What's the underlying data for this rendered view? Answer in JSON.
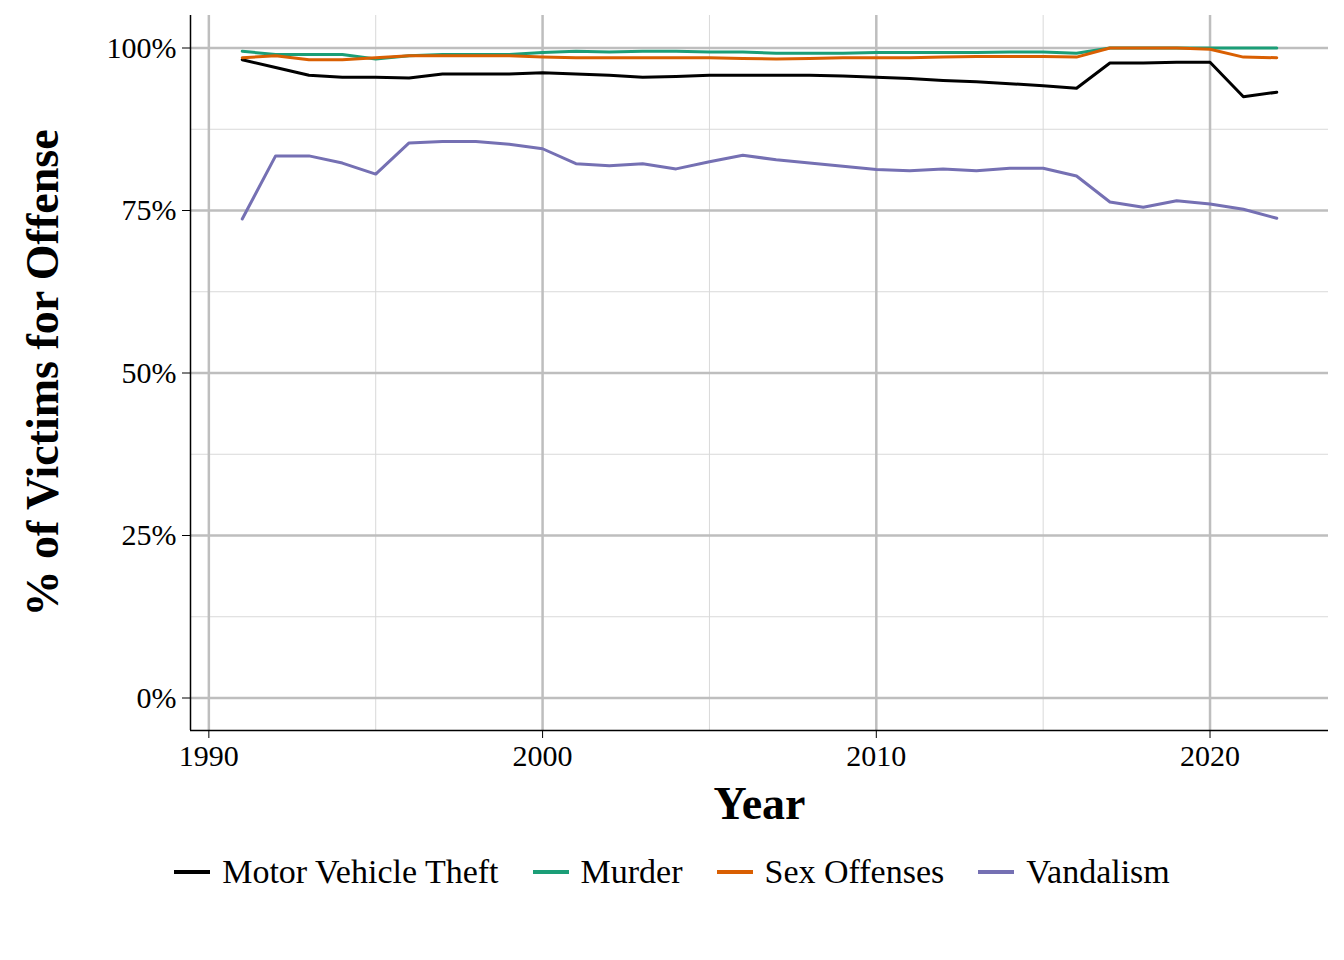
{
  "chart_data": {
    "type": "line",
    "x_label": "Year",
    "y_label": "% of Victims for Offense",
    "x": [
      1991,
      1992,
      1993,
      1994,
      1995,
      1996,
      1997,
      1998,
      1999,
      2000,
      2001,
      2002,
      2003,
      2004,
      2005,
      2006,
      2007,
      2008,
      2009,
      2010,
      2011,
      2012,
      2013,
      2014,
      2015,
      2016,
      2017,
      2018,
      2019,
      2020,
      2021,
      2022
    ],
    "series": [
      {
        "name": "Motor Vehicle Theft",
        "color": "#000000",
        "values": [
          98.2,
          97.0,
          95.8,
          95.5,
          95.5,
          95.4,
          96.0,
          96.0,
          96.0,
          96.2,
          96.0,
          95.8,
          95.5,
          95.6,
          95.8,
          95.8,
          95.8,
          95.8,
          95.7,
          95.5,
          95.3,
          95.0,
          94.8,
          94.5,
          94.2,
          93.8,
          97.7,
          97.7,
          97.8,
          97.8,
          92.5,
          93.2
        ]
      },
      {
        "name": "Murder",
        "color": "#1B9E77",
        "values": [
          99.5,
          99.0,
          99.0,
          99.0,
          98.3,
          98.8,
          99.0,
          99.0,
          99.0,
          99.3,
          99.5,
          99.4,
          99.5,
          99.5,
          99.4,
          99.4,
          99.2,
          99.2,
          99.2,
          99.3,
          99.3,
          99.3,
          99.3,
          99.4,
          99.4,
          99.2,
          100,
          100,
          100,
          100,
          100,
          100
        ]
      },
      {
        "name": "Sex Offenses",
        "color": "#D95F02",
        "values": [
          98.5,
          98.8,
          98.2,
          98.2,
          98.5,
          98.8,
          98.8,
          98.8,
          98.8,
          98.6,
          98.5,
          98.5,
          98.5,
          98.5,
          98.5,
          98.4,
          98.3,
          98.4,
          98.5,
          98.5,
          98.5,
          98.6,
          98.7,
          98.7,
          98.7,
          98.6,
          100,
          100,
          100,
          99.8,
          98.6,
          98.5
        ]
      },
      {
        "name": "Vandalism",
        "color": "#7570B3",
        "values": [
          73.7,
          83.4,
          83.4,
          82.3,
          80.6,
          85.4,
          85.6,
          85.6,
          85.2,
          84.5,
          82.2,
          81.9,
          82.2,
          81.4,
          82.5,
          83.5,
          82.8,
          82.3,
          81.8,
          81.3,
          81.1,
          81.4,
          81.1,
          81.5,
          81.5,
          80.3,
          76.3,
          75.5,
          76.5,
          76.0,
          75.2,
          73.8
        ]
      }
    ],
    "xlim": [
      1989.45,
      2023.55
    ],
    "ylim": [
      -5,
      105
    ],
    "xticks": [
      1990,
      2000,
      2010,
      2020
    ],
    "yticks": [
      {
        "value": 0,
        "label": "0%"
      },
      {
        "value": 25,
        "label": "25%"
      },
      {
        "value": 50,
        "label": "50%"
      },
      {
        "value": 75,
        "label": "75%"
      },
      {
        "value": 100,
        "label": "100%"
      }
    ],
    "grid": true,
    "legend": "bottom"
  }
}
